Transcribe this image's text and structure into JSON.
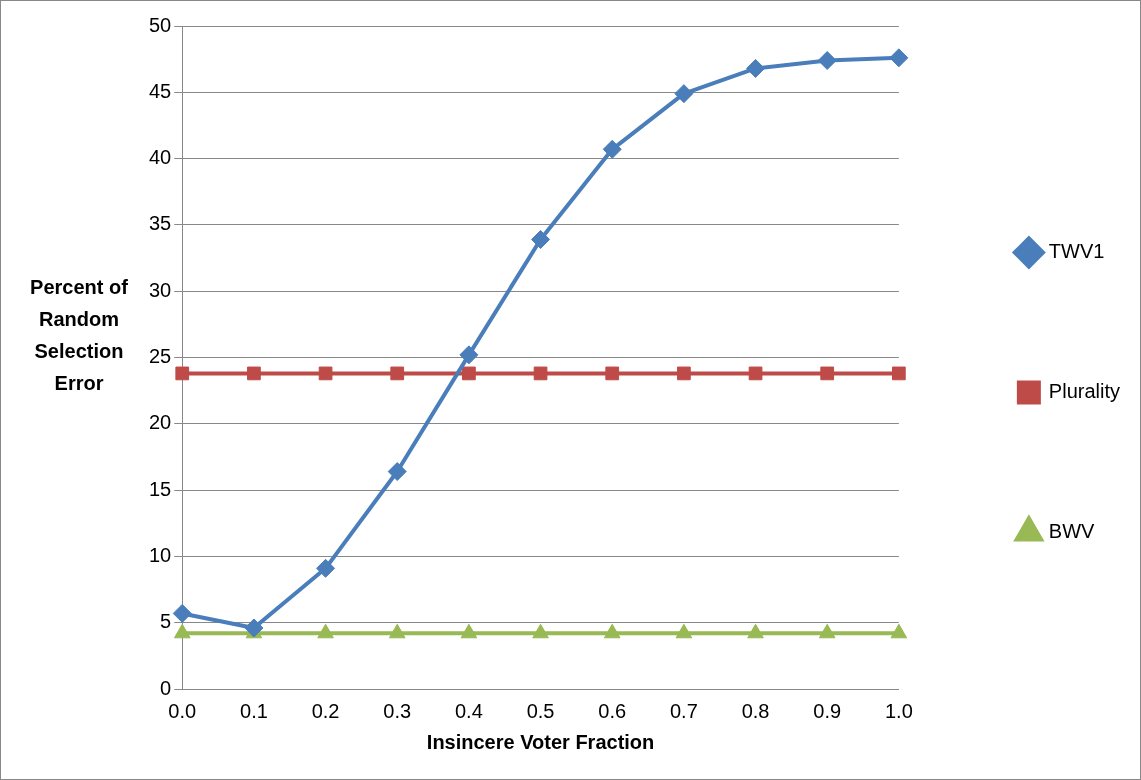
{
  "chart_data": {
    "type": "line",
    "xlabel": "Insincere Voter Fraction",
    "ylabel": "Percent of Random Selection Error",
    "categories": [
      "0.0",
      "0.1",
      "0.2",
      "0.3",
      "0.4",
      "0.5",
      "0.6",
      "0.7",
      "0.8",
      "0.9",
      "1.0"
    ],
    "series": [
      {
        "name": "TWV1",
        "color": "#4a7ebb",
        "marker": "diamond",
        "values": [
          5.7,
          4.6,
          9.1,
          16.4,
          25.2,
          33.9,
          40.7,
          44.9,
          46.8,
          47.4,
          47.6
        ]
      },
      {
        "name": "Plurality",
        "color": "#be4b48",
        "marker": "square",
        "values": [
          23.8,
          23.8,
          23.8,
          23.8,
          23.8,
          23.8,
          23.8,
          23.8,
          23.8,
          23.8,
          23.8
        ]
      },
      {
        "name": "BWV",
        "color": "#98b954",
        "marker": "triangle",
        "values": [
          4.2,
          4.2,
          4.2,
          4.2,
          4.2,
          4.2,
          4.2,
          4.2,
          4.2,
          4.2,
          4.2
        ]
      }
    ],
    "ylim": [
      0,
      50
    ],
    "yticks": [
      0,
      5,
      10,
      15,
      20,
      25,
      30,
      35,
      40,
      45,
      50
    ],
    "grid": "y",
    "legend": "right",
    "line_style": "solid"
  }
}
